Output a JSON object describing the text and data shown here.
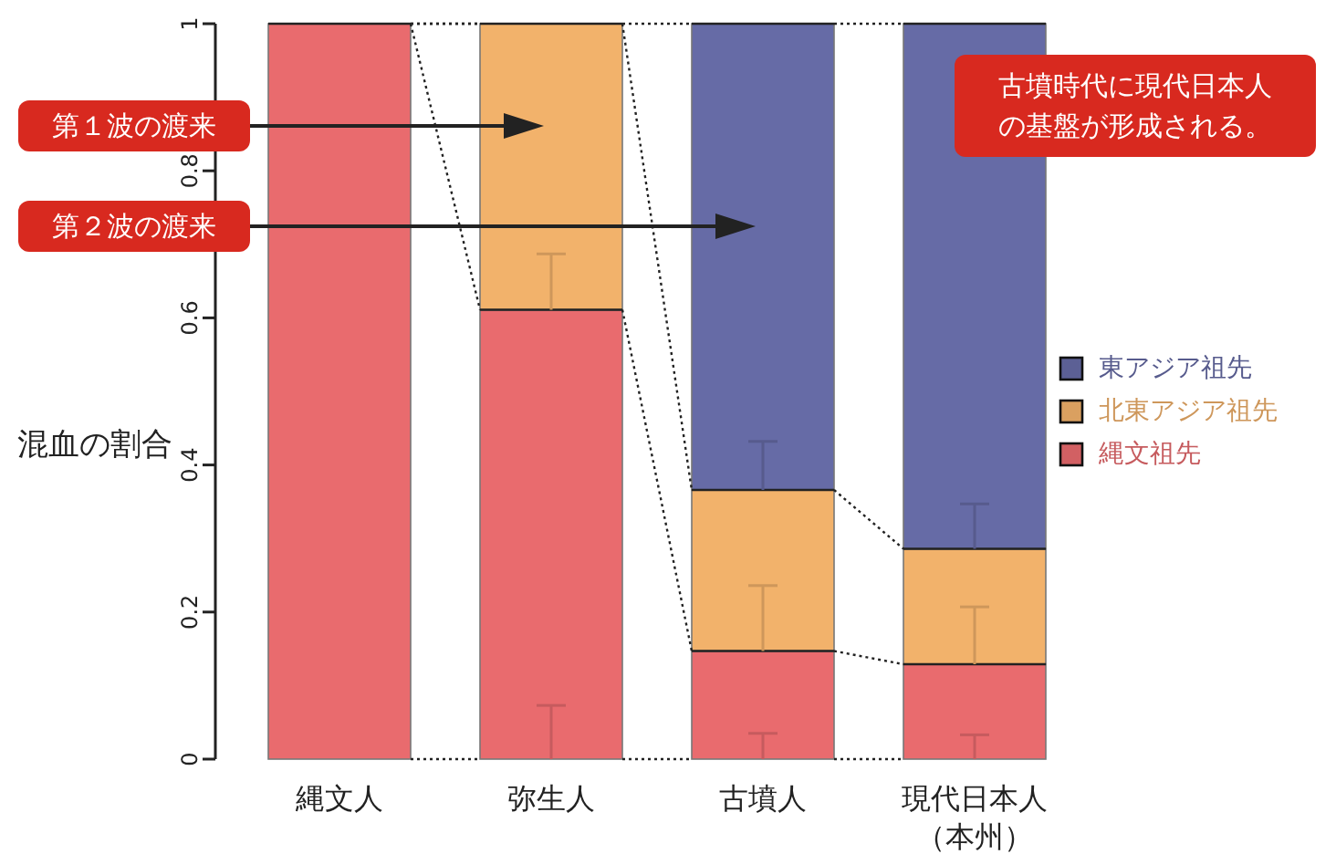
{
  "chart_data": {
    "type": "bar",
    "stacked": true,
    "ylabel": "混血の割合",
    "categories": [
      "縄文人",
      "弥生人",
      "古墳人",
      "現代日本人（本州）"
    ],
    "series": [
      {
        "name": "縄文祖先",
        "color": "#e96b6e",
        "values": [
          1,
          0.611,
          0.147,
          0.129
        ],
        "errors": [
          null,
          [
            0,
            0.073
          ],
          [
            0,
            0.035
          ],
          [
            0,
            0.033
          ]
        ]
      },
      {
        "name": "北東アジア祖先",
        "color": "#f2b26b",
        "values": [
          null,
          0.389,
          0.219,
          0.157
        ],
        "errors": [
          null,
          [
            0.611,
            0.687
          ],
          [
            0.147,
            0.236
          ],
          [
            0.129,
            0.207
          ]
        ]
      },
      {
        "name": "東アジア祖先",
        "color": "#666ba6",
        "values": [
          null,
          null,
          0.634,
          0.714
        ],
        "errors": [
          null,
          null,
          [
            0.366,
            0.432
          ],
          [
            0.286,
            0.347
          ]
        ]
      }
    ],
    "ylim": [
      0,
      1
    ],
    "yticks": [
      0,
      0.2,
      0.4,
      0.6,
      0.8,
      1
    ],
    "legend": "right",
    "annotations": [
      "第１波の渡来",
      "第２波の渡来",
      "古墳時代に現代日本人の基盤が形成される。"
    ]
  }
}
